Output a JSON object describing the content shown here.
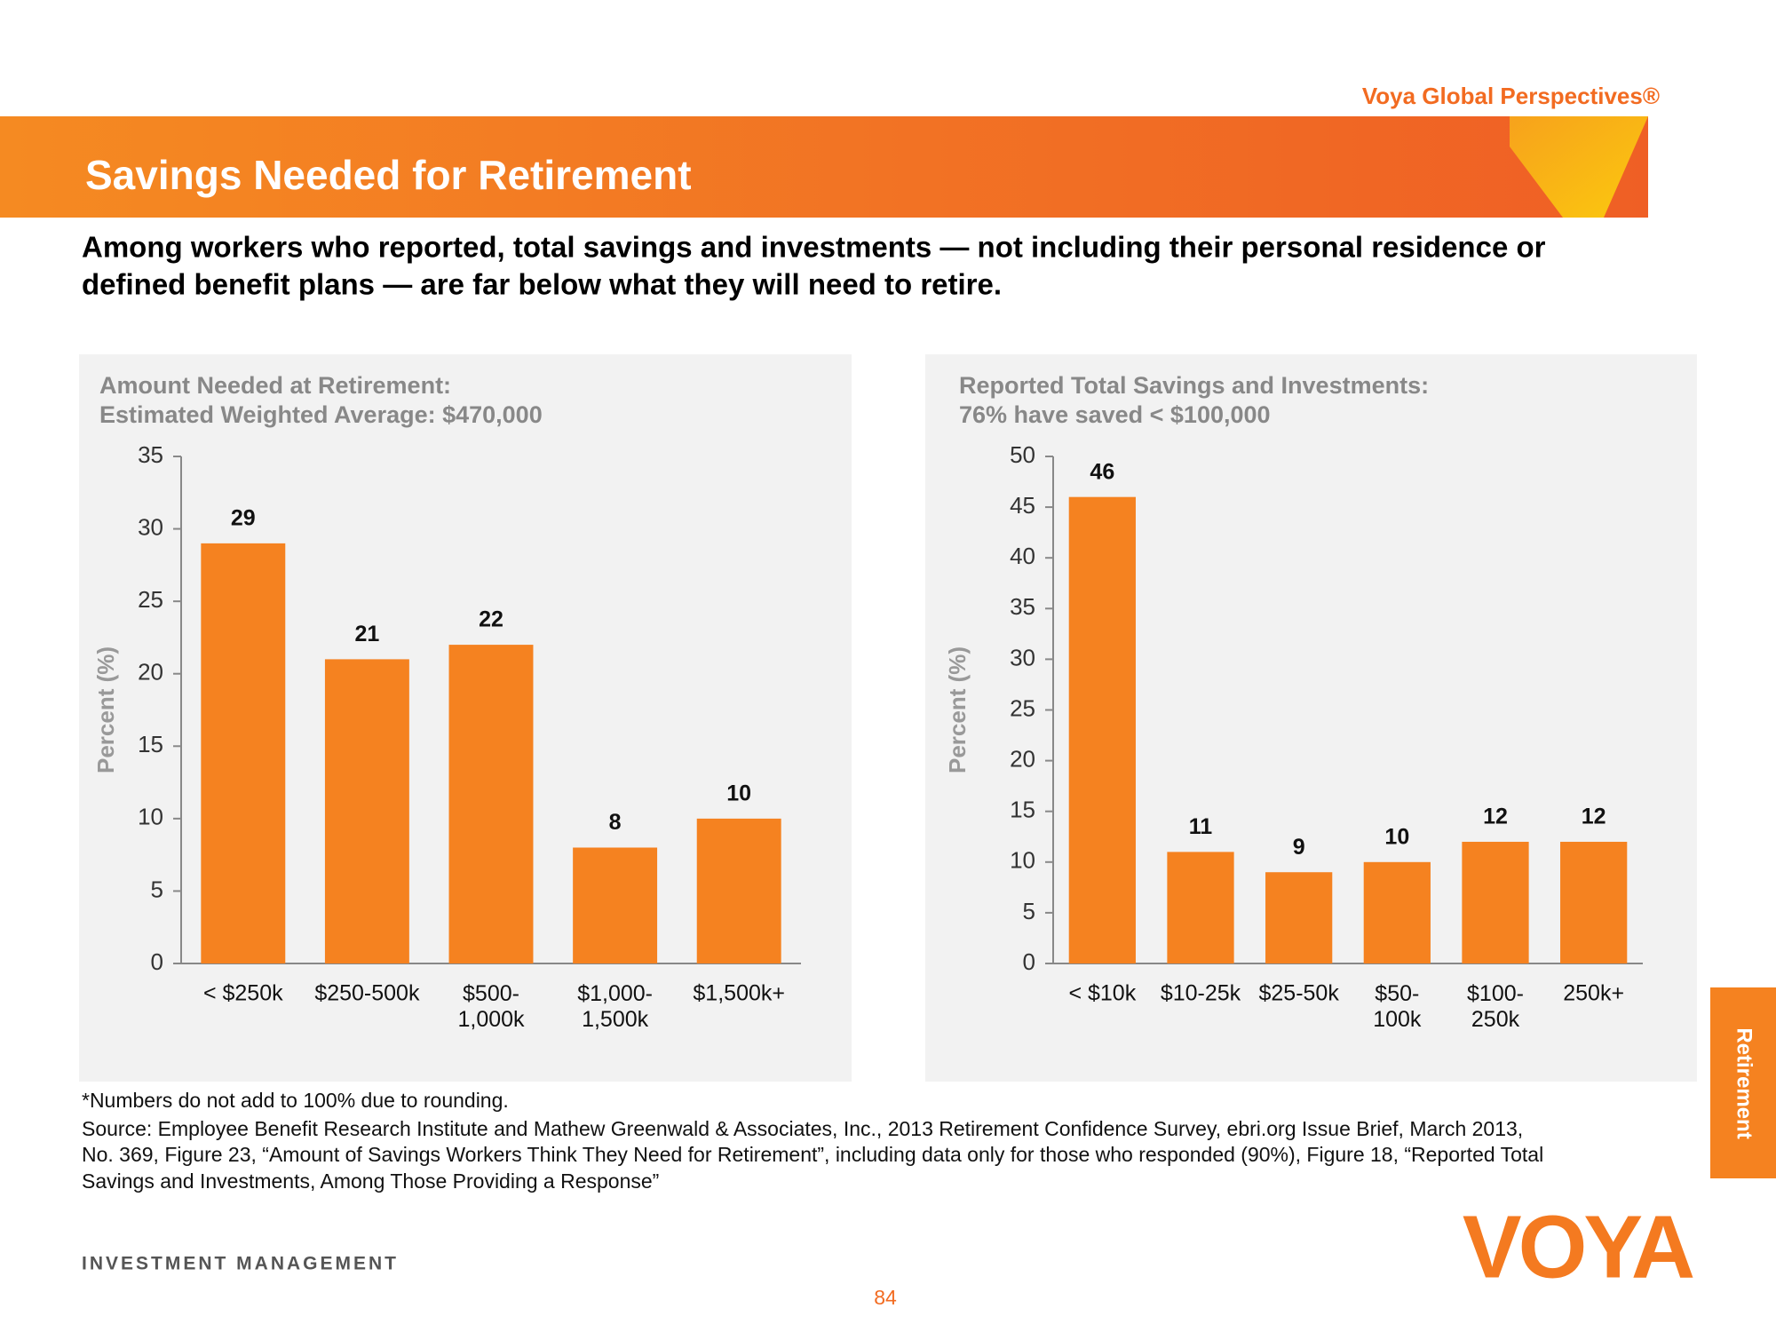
{
  "header": {
    "brand": "Voya Global Perspectives®",
    "title": "Savings Needed for Retirement",
    "lead": [
      "Among workers who reported, total savings and investments — not including their personal residence or",
      "defined benefit plans — are far below what they will need to retire."
    ]
  },
  "chart_data": [
    {
      "type": "bar",
      "title": "Amount Needed at Retirement:",
      "subtitle": "Estimated Weighted Average: $470,000",
      "y_label": "Percent (%)",
      "categories": [
        "< $250k",
        "$250-500k",
        "$500-\n1,000k",
        "$1,000-\n1,500k",
        "$1,500k+"
      ],
      "values": [
        29,
        21,
        22,
        8,
        10
      ],
      "color": "#f58220",
      "ylim": [
        0,
        35
      ],
      "yticks": [
        0,
        5,
        10,
        15,
        20,
        25,
        30,
        35
      ]
    },
    {
      "type": "bar",
      "title": "Reported Total Savings and Investments:",
      "subtitle": "76% have saved < $100,000",
      "y_label": "Percent (%)",
      "categories": [
        "< $10k",
        "$10-25k",
        "$25-50k",
        "$50-\n100k",
        "$100-\n250k",
        "250k+"
      ],
      "values": [
        46,
        11,
        9,
        10,
        12,
        12
      ],
      "color": "#f58220",
      "ylim": [
        0,
        50
      ],
      "yticks": [
        0,
        5,
        10,
        15,
        20,
        25,
        30,
        35,
        40,
        45,
        50
      ]
    }
  ],
  "footnotes": [
    "*Numbers do not add to 100% due to rounding.",
    "Source: Employee Benefit Research Institute and Mathew Greenwald & Associates, Inc., 2013 Retirement Confidence Survey, ebri.org Issue Brief, March 2013,",
    "No. 369, Figure 23, “Amount of Savings Workers Think They Need for Retirement”, including data only for those who responded (90%), Figure 18, “Reported Total",
    "Savings and Investments, Among Those Providing a Response”"
  ],
  "side_tab": "Retirement",
  "footer": {
    "division": "INVESTMENT MANAGEMENT",
    "logo": "VOYA",
    "page": "84"
  }
}
